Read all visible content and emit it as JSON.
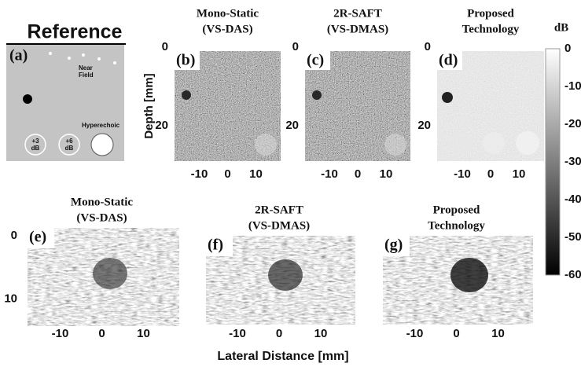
{
  "reference": {
    "title": "Reference",
    "label": "(a)",
    "near_field": [
      "Near",
      "Field"
    ],
    "hyperechoic": "Hyperechoic",
    "cyst_3": [
      "+3",
      "dB"
    ],
    "cyst_6": [
      "+6",
      "dB"
    ]
  },
  "y_axis_label": "Depth [mm]",
  "x_axis_label": "Lateral Distance [mm]",
  "top_yticks": [
    0,
    20
  ],
  "top_xticks": [
    -10,
    0,
    10
  ],
  "top_panels": [
    {
      "label": "(b)",
      "title": [
        "Mono-Static",
        "(VS-DAS)"
      ]
    },
    {
      "label": "(c)",
      "title": [
        "2R-SAFT",
        "(VS-DMAS)"
      ]
    },
    {
      "label": "(d)",
      "title": [
        "Proposed",
        "Technology"
      ]
    }
  ],
  "colorbar": {
    "unit": "dB",
    "ticks": [
      0,
      -10,
      -20,
      -30,
      -40,
      -50,
      -60
    ]
  },
  "bottom_yticks": [
    0,
    10
  ],
  "bottom_xticks": [
    -10,
    0,
    10
  ],
  "bottom_panels": [
    {
      "label": "(e)",
      "title": [
        "Mono-Static",
        "(VS-DAS)"
      ]
    },
    {
      "label": "(f)",
      "title": [
        "2R-SAFT",
        "(VS-DMAS)"
      ]
    },
    {
      "label": "(g)",
      "title": [
        "Proposed",
        "Technology"
      ]
    }
  ]
}
